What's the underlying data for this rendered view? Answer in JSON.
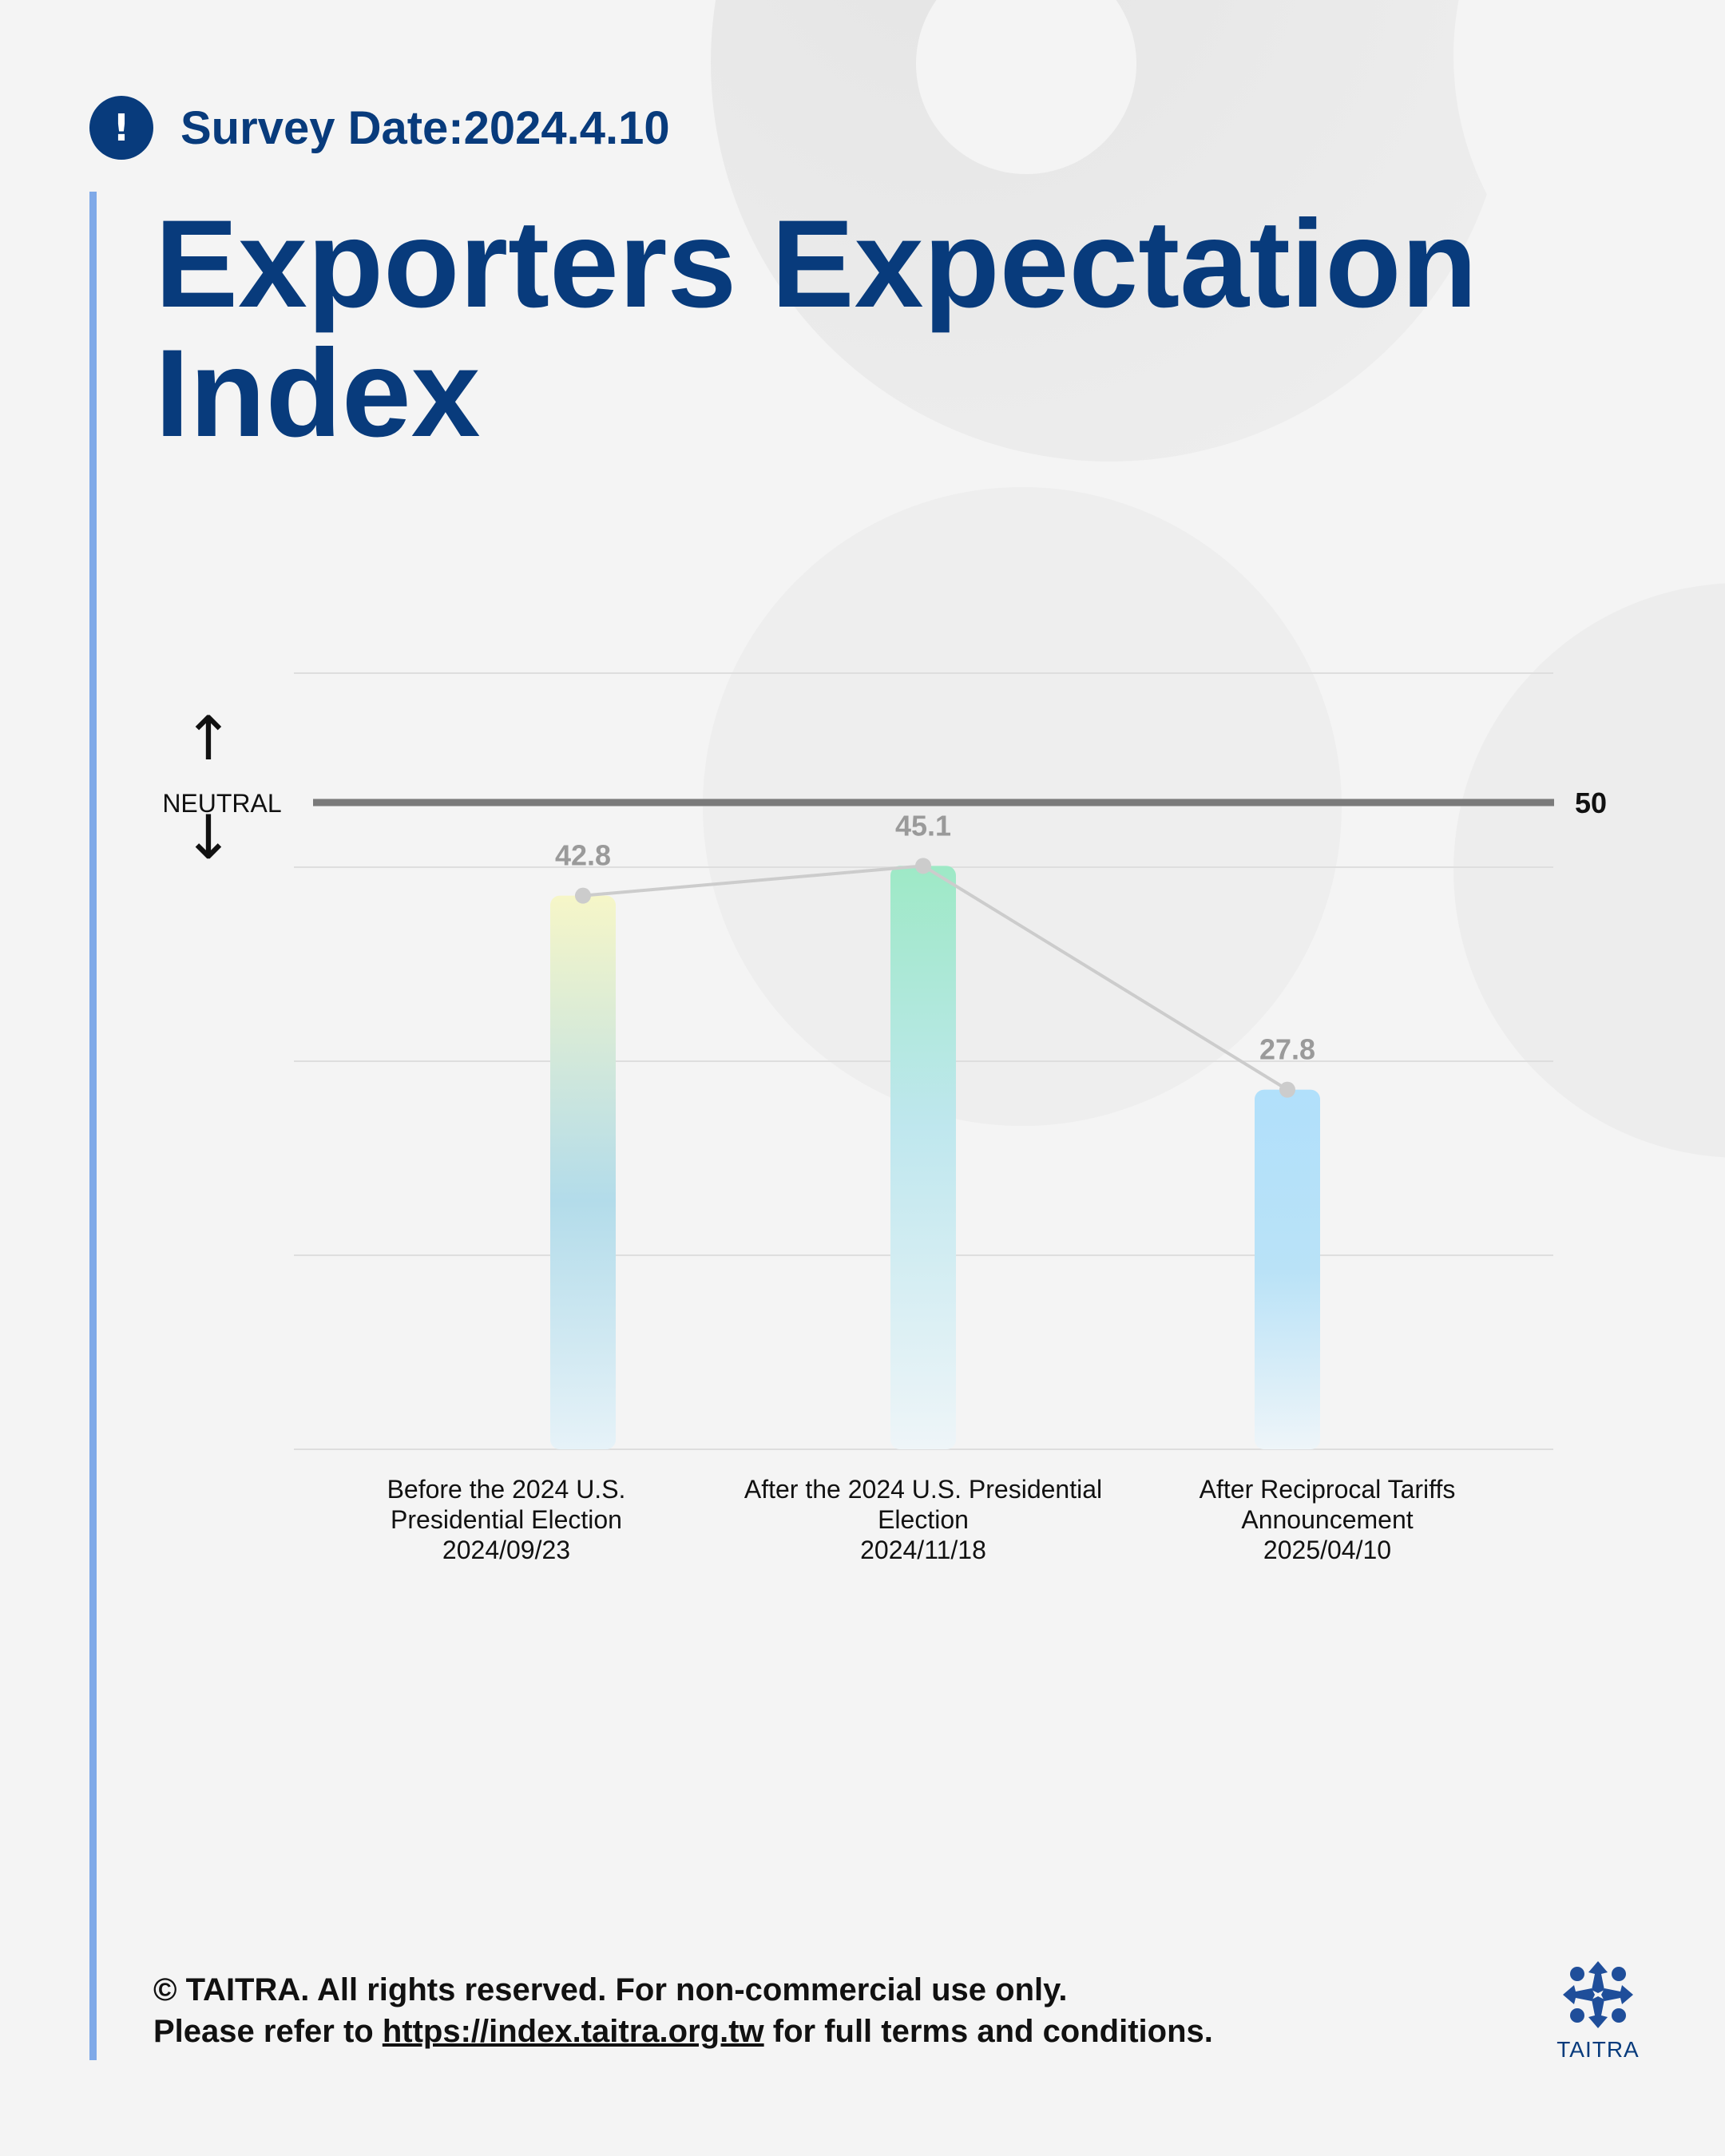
{
  "header": {
    "survey_date": "Survey Date:2024.4.10",
    "alert_icon": "exclamation-icon",
    "title": "Exporters Expectation Index"
  },
  "colors": {
    "brand_blue": "#083b7c",
    "accent_bar": "#7fa9e8",
    "background": "#f4f4f4",
    "neutral_line": "#7a7a7a",
    "trend_line": "#cccccc",
    "value_label": "#9a9a9a",
    "bar_1": [
      "#f6f6c8",
      "#b3dcea",
      "#e6f2f8"
    ],
    "bar_2": [
      "#9ee9c6",
      "#bfe7ee",
      "#eef5f8"
    ],
    "bar_3": [
      "#b1e0fb",
      "#eef5f9"
    ]
  },
  "chart_data": {
    "type": "bar",
    "title": "",
    "xlabel": "",
    "ylabel": "",
    "ylim": [
      0,
      60
    ],
    "grid": true,
    "categories": [
      [
        "Before the 2024 U.S.",
        "Presidential Election",
        "2024/09/23"
      ],
      [
        "After the 2024 U.S. Presidential",
        "Election",
        "2024/11/18"
      ],
      [
        "After Reciprocal Tariffs",
        "Announcement",
        "2025/04/10"
      ]
    ],
    "values": [
      42.8,
      45.1,
      27.8
    ],
    "value_labels": [
      "42.8",
      "45.1",
      "27.8"
    ],
    "trend_line": true,
    "reference_line": {
      "value": 50,
      "label": "NEUTRAL",
      "value_label": "50",
      "up_arrow": "↑",
      "down_arrow": "↓"
    }
  },
  "footer": {
    "line1": "© TAITRA. All rights reserved. For non-commercial use only.",
    "line2_prefix": "Please refer to",
    "link": "https://index.taitra.org.tw",
    "line2_suffix": "for full terms and conditions."
  },
  "logo": {
    "text": "TAITRA",
    "icon": "taitra-logo-icon"
  }
}
